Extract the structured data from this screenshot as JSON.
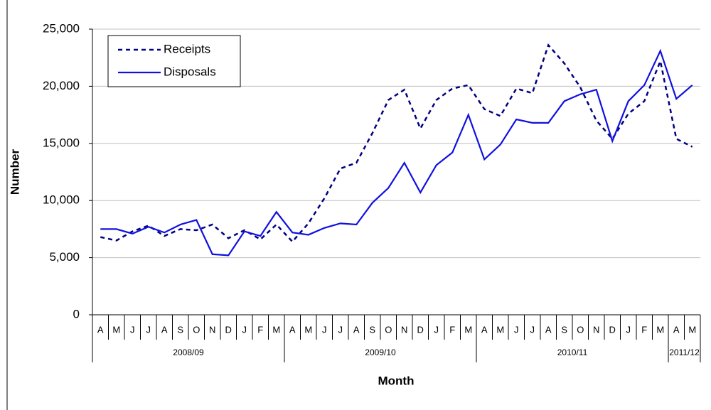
{
  "chart_data": {
    "type": "line",
    "ylabel": "Number",
    "xlabel": "Month",
    "categories": [
      "A",
      "M",
      "J",
      "J",
      "A",
      "S",
      "O",
      "N",
      "D",
      "J",
      "F",
      "M",
      "A",
      "M",
      "J",
      "J",
      "A",
      "S",
      "O",
      "N",
      "D",
      "J",
      "F",
      "M",
      "A",
      "M",
      "J",
      "J",
      "A",
      "S",
      "O",
      "N",
      "D",
      "J",
      "F",
      "M",
      "A",
      "M"
    ],
    "groups": [
      "2008/09",
      "2008/09",
      "2008/09",
      "2008/09",
      "2008/09",
      "2008/09",
      "2008/09",
      "2008/09",
      "2008/09",
      "2008/09",
      "2008/09",
      "2008/09",
      "2009/10",
      "2009/10",
      "2009/10",
      "2009/10",
      "2009/10",
      "2009/10",
      "2009/10",
      "2009/10",
      "2009/10",
      "2009/10",
      "2009/10",
      "2009/10",
      "2010/11",
      "2010/11",
      "2010/11",
      "2010/11",
      "2010/11",
      "2010/11",
      "2010/11",
      "2010/11",
      "2010/11",
      "2010/11",
      "2010/11",
      "2010/11",
      "2011/12",
      "2011/12"
    ],
    "series": [
      {
        "name": "Receipts",
        "color": "#000080",
        "dashed": true,
        "values": [
          6800,
          6500,
          7300,
          7800,
          6900,
          7500,
          7400,
          7900,
          6700,
          7400,
          6600,
          7900,
          6400,
          8000,
          10200,
          12800,
          13300,
          15900,
          18800,
          19700,
          16300,
          18800,
          19800,
          20100,
          18000,
          17400,
          19800,
          19400,
          23600,
          22000,
          19900,
          17000,
          15400,
          17600,
          18700,
          22200,
          15400,
          14700
        ]
      },
      {
        "name": "Disposals",
        "color": "#1010e0",
        "dashed": false,
        "values": [
          7500,
          7500,
          7100,
          7700,
          7200,
          7900,
          8300,
          5300,
          5200,
          7300,
          6900,
          9000,
          7200,
          7000,
          7600,
          8000,
          7900,
          9800,
          11100,
          13300,
          10700,
          13100,
          14200,
          17500,
          13600,
          14900,
          17100,
          16800,
          16800,
          18700,
          19300,
          19700,
          15200,
          18700,
          20100,
          23100,
          18900,
          20100
        ]
      }
    ],
    "ylim": [
      0,
      25000
    ],
    "yticks": [
      0,
      {
        "value": 5000,
        "label": "5,000"
      },
      {
        "value": 10000,
        "label": "10,000"
      },
      {
        "value": 15000,
        "label": "15,000"
      },
      {
        "value": 20000,
        "label": "20,000"
      },
      {
        "value": 25000,
        "label": "25,000"
      }
    ],
    "grid": true,
    "legend": "upper left"
  }
}
